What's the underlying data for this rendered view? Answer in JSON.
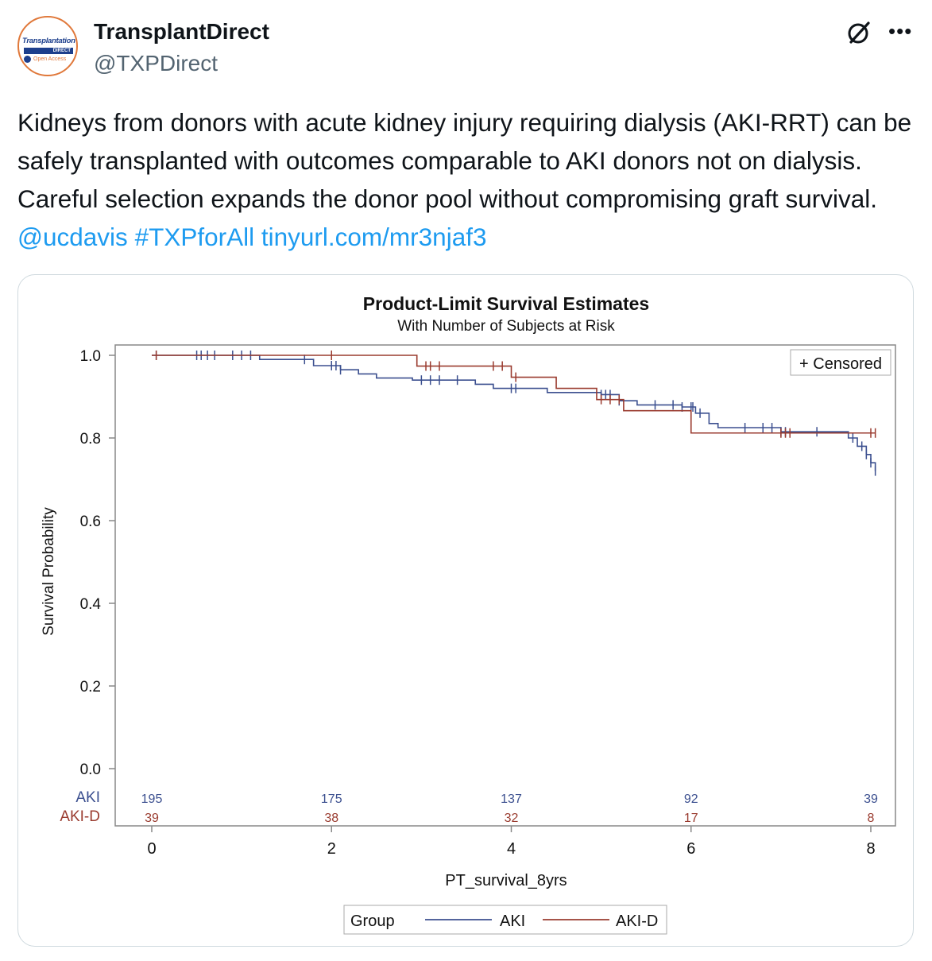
{
  "account": {
    "name": "TransplantDirect",
    "handle": "@TXPDirect",
    "avatar_brand": "Transplantation",
    "avatar_sub": "DIRECT",
    "avatar_oa": "Open Access"
  },
  "tweet": {
    "text": "Kidneys from donors with acute kidney injury requiring dialysis (AKI-RRT) can be safely transplanted with outcomes comparable to AKI donors not on dialysis. Careful selection expands the donor pool without compromising graft survival. ",
    "mention": "@ucdavis",
    "hashtag": "#TXPforAll",
    "link": "tinyurl.com/mr3njaf3"
  },
  "icons": {
    "grok": "grok-icon",
    "more": "more-icon"
  },
  "colors": {
    "aki": "#3b4f8f",
    "akid": "#9a3b2f",
    "link": "#1d9bf0"
  },
  "chart_data": {
    "type": "line",
    "title": "Product-Limit Survival Estimates",
    "subtitle": "With Number of Subjects at Risk",
    "xlabel": "PT_survival_8yrs",
    "ylabel": "Survival Probability",
    "xlim": [
      0,
      8
    ],
    "ylim": [
      0,
      1
    ],
    "xticks": [
      0,
      2,
      4,
      6,
      8
    ],
    "yticks": [
      "0.0",
      "0.2",
      "0.4",
      "0.6",
      "0.8",
      "1.0"
    ],
    "censored_label": "+ Censored",
    "legend_title": "Group",
    "series": [
      {
        "name": "AKI",
        "color": "#3b4f8f",
        "steps": [
          [
            0,
            1.0
          ],
          [
            1.2,
            0.99
          ],
          [
            1.8,
            0.975
          ],
          [
            2.1,
            0.965
          ],
          [
            2.3,
            0.955
          ],
          [
            2.5,
            0.945
          ],
          [
            2.9,
            0.94
          ],
          [
            3.6,
            0.93
          ],
          [
            3.8,
            0.92
          ],
          [
            4.4,
            0.91
          ],
          [
            5.0,
            0.905
          ],
          [
            5.2,
            0.89
          ],
          [
            5.4,
            0.88
          ],
          [
            5.9,
            0.875
          ],
          [
            6.05,
            0.86
          ],
          [
            6.2,
            0.835
          ],
          [
            6.3,
            0.825
          ],
          [
            7.0,
            0.815
          ],
          [
            7.75,
            0.8
          ],
          [
            7.85,
            0.78
          ],
          [
            7.95,
            0.76
          ],
          [
            8.0,
            0.74
          ],
          [
            8.05,
            0.72
          ]
        ],
        "censors": [
          0.05,
          0.5,
          0.55,
          0.62,
          0.7,
          0.9,
          1.0,
          1.1,
          1.7,
          2.0,
          2.05,
          2.1,
          3.0,
          3.1,
          3.2,
          3.4,
          4.0,
          4.05,
          5.0,
          5.05,
          5.1,
          5.2,
          5.6,
          5.8,
          5.9,
          6.0,
          6.02,
          6.1,
          6.6,
          6.8,
          6.9,
          7.0,
          7.05,
          7.4,
          7.8,
          7.9,
          7.95,
          8.0,
          8.05
        ],
        "at_risk": [
          195,
          175,
          137,
          92,
          39
        ]
      },
      {
        "name": "AKI-D",
        "color": "#9a3b2f",
        "steps": [
          [
            0,
            1.0
          ],
          [
            2.95,
            0.974
          ],
          [
            4.0,
            0.947
          ],
          [
            4.5,
            0.92
          ],
          [
            4.95,
            0.893
          ],
          [
            5.25,
            0.866
          ],
          [
            6.0,
            0.812
          ],
          [
            8.05,
            0.812
          ]
        ],
        "censors": [
          0.05,
          2.0,
          3.05,
          3.1,
          3.2,
          3.8,
          3.9,
          4.05,
          5.0,
          5.1,
          5.2,
          7.0,
          7.05,
          7.1,
          8.0,
          8.05
        ],
        "at_risk": [
          39,
          38,
          32,
          17,
          8
        ]
      }
    ],
    "at_risk_x": [
      0,
      2,
      4,
      6,
      8
    ]
  }
}
